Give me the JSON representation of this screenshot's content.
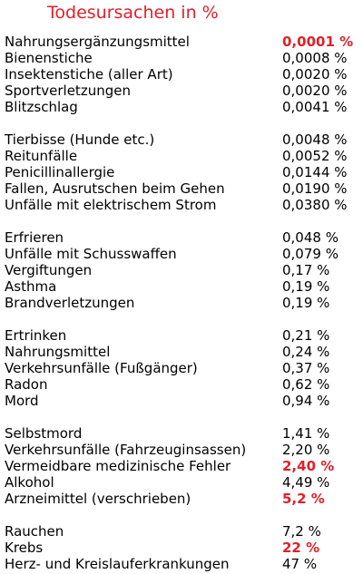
{
  "title": "Todesursachen in %",
  "colors": {
    "title": "#e0202a",
    "highlight": "#e0202a",
    "text": "#000000",
    "background": "#ffffff"
  },
  "groups": [
    {
      "rows": [
        {
          "cause": "Nahrungsergänzungsmittel",
          "value": "0,0001 %",
          "highlight": true
        },
        {
          "cause": "Bienenstiche",
          "value": "0,0008 %",
          "highlight": false
        },
        {
          "cause": "Insektenstiche (aller Art)",
          "value": "0,0020 %",
          "highlight": false
        },
        {
          "cause": "Sportverletzungen",
          "value": "0,0020 %",
          "highlight": false
        },
        {
          "cause": "Blitzschlag",
          "value": "0,0041 %",
          "highlight": false
        }
      ]
    },
    {
      "rows": [
        {
          "cause": "Tierbisse (Hunde etc.)",
          "value": "0,0048 %",
          "highlight": false
        },
        {
          "cause": "Reitunfälle",
          "value": "0,0052 %",
          "highlight": false
        },
        {
          "cause": "Penicillinallergie",
          "value": "0,0144 %",
          "highlight": false
        },
        {
          "cause": "Fallen, Ausrutschen beim Gehen",
          "value": "0,0190 %",
          "highlight": false
        },
        {
          "cause": "Unfälle mit elektrischem Strom",
          "value": "0,0380 %",
          "highlight": false
        }
      ]
    },
    {
      "rows": [
        {
          "cause": "Erfrieren",
          "value": "0,048 %",
          "highlight": false
        },
        {
          "cause": "Unfälle mit Schusswaffen",
          "value": "0,079 %",
          "highlight": false
        },
        {
          "cause": "Vergiftungen",
          "value": "0,17 %",
          "highlight": false
        },
        {
          "cause": "Asthma",
          "value": "0,19 %",
          "highlight": false
        },
        {
          "cause": "Brandverletzungen",
          "value": "0,19 %",
          "highlight": false
        }
      ]
    },
    {
      "rows": [
        {
          "cause": "Ertrinken",
          "value": "0,21 %",
          "highlight": false
        },
        {
          "cause": "Nahrungsmittel",
          "value": "0,24 %",
          "highlight": false
        },
        {
          "cause": "Verkehrsunfälle (Fußgänger)",
          "value": "0,37 %",
          "highlight": false
        },
        {
          "cause": "Radon",
          "value": "0,62 %",
          "highlight": false
        },
        {
          "cause": "Mord",
          "value": "0,94 %",
          "highlight": false
        }
      ]
    },
    {
      "rows": [
        {
          "cause": "Selbstmord",
          "value": "1,41 %",
          "highlight": false
        },
        {
          "cause": "Verkehrsunfälle (Fahrzeuginsassen)",
          "value": "2,20 %",
          "highlight": false
        },
        {
          "cause": "Vermeidbare medizinische Fehler",
          "value": "2,40 %",
          "highlight": true
        },
        {
          "cause": "Alkohol",
          "value": "4,49 %",
          "highlight": false
        },
        {
          "cause": "Arzneimittel (verschrieben)",
          "value": "5,2 %",
          "highlight": true
        }
      ]
    },
    {
      "rows": [
        {
          "cause": "Rauchen",
          "value": "7,2 %",
          "highlight": false
        },
        {
          "cause": "Krebs",
          "value": "22 %",
          "highlight": true
        },
        {
          "cause": "Herz- und Kreislauferkrankungen",
          "value": "47 %",
          "highlight": false
        }
      ]
    }
  ]
}
